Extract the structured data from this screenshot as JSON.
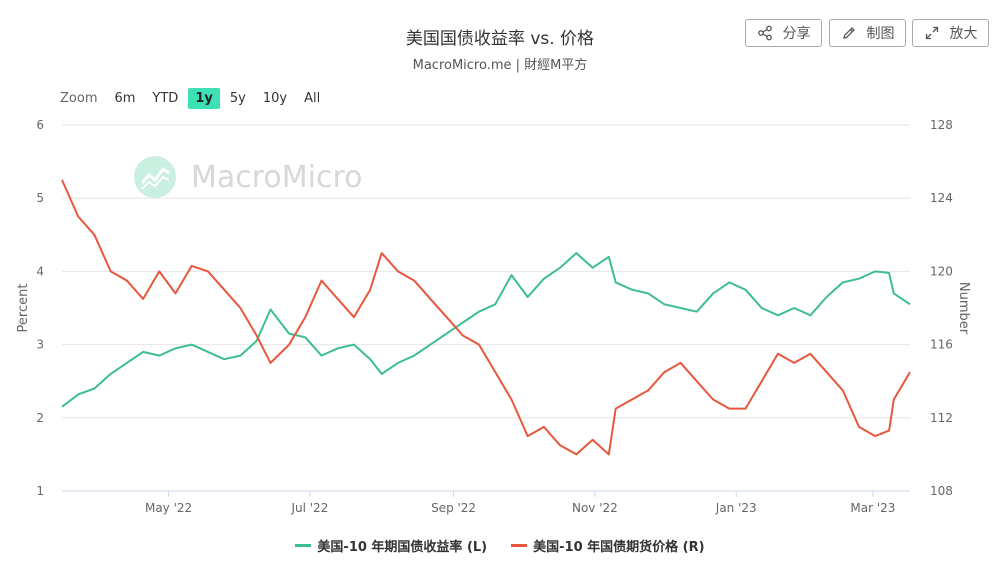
{
  "header": {
    "title": "美国国债收益率 vs. 价格",
    "subtitle": "MacroMicro.me | 財經M平方"
  },
  "toolbar": {
    "share_label": "分享",
    "draw_label": "制图",
    "expand_label": "放大"
  },
  "range_selector": {
    "zoom_label": "Zoom",
    "buttons": [
      "6m",
      "YTD",
      "1y",
      "5y",
      "10y",
      "All"
    ],
    "active": "1y"
  },
  "watermark": {
    "text": "MacroMicro"
  },
  "colors": {
    "yield": "#3ebd93",
    "price": "#e8573d",
    "active_range": "#3ee0b5"
  },
  "chart_data": {
    "type": "line",
    "x_ticks": [
      "May '22",
      "Jul '22",
      "Sep '22",
      "Nov '22",
      "Jan '23",
      "Mar '23"
    ],
    "x_tick_dates": [
      "2022-05-01",
      "2022-07-01",
      "2022-09-01",
      "2022-11-01",
      "2023-01-01",
      "2023-03-01"
    ],
    "x_range": [
      "2022-03-16",
      "2023-03-17"
    ],
    "y_left": {
      "label": "Percent",
      "min": 1,
      "max": 6,
      "ticks": [
        "1",
        "2",
        "3",
        "4",
        "5",
        "6"
      ]
    },
    "y_right": {
      "label": "Number",
      "min": 108,
      "max": 128,
      "ticks": [
        "108",
        "112",
        "116",
        "120",
        "124",
        "128"
      ]
    },
    "grid": true,
    "legend_position": "bottom",
    "series": [
      {
        "name": "美国-10 年期国债收益率 (L)",
        "axis": "left",
        "points": [
          [
            "2022-03-16",
            2.15
          ],
          [
            "2022-03-23",
            2.32
          ],
          [
            "2022-03-30",
            2.4
          ],
          [
            "2022-04-06",
            2.6
          ],
          [
            "2022-04-13",
            2.75
          ],
          [
            "2022-04-20",
            2.9
          ],
          [
            "2022-04-27",
            2.85
          ],
          [
            "2022-05-04",
            2.95
          ],
          [
            "2022-05-11",
            3.0
          ],
          [
            "2022-05-18",
            2.9
          ],
          [
            "2022-05-25",
            2.8
          ],
          [
            "2022-06-01",
            2.85
          ],
          [
            "2022-06-08",
            3.05
          ],
          [
            "2022-06-14",
            3.48
          ],
          [
            "2022-06-22",
            3.15
          ],
          [
            "2022-06-29",
            3.1
          ],
          [
            "2022-07-06",
            2.85
          ],
          [
            "2022-07-13",
            2.95
          ],
          [
            "2022-07-20",
            3.0
          ],
          [
            "2022-07-27",
            2.8
          ],
          [
            "2022-08-01",
            2.6
          ],
          [
            "2022-08-08",
            2.75
          ],
          [
            "2022-08-15",
            2.85
          ],
          [
            "2022-08-22",
            3.0
          ],
          [
            "2022-08-29",
            3.15
          ],
          [
            "2022-09-05",
            3.3
          ],
          [
            "2022-09-12",
            3.45
          ],
          [
            "2022-09-19",
            3.55
          ],
          [
            "2022-09-26",
            3.95
          ],
          [
            "2022-10-03",
            3.65
          ],
          [
            "2022-10-10",
            3.9
          ],
          [
            "2022-10-17",
            4.05
          ],
          [
            "2022-10-24",
            4.25
          ],
          [
            "2022-10-31",
            4.05
          ],
          [
            "2022-11-07",
            4.2
          ],
          [
            "2022-11-10",
            3.85
          ],
          [
            "2022-11-17",
            3.75
          ],
          [
            "2022-11-24",
            3.7
          ],
          [
            "2022-12-01",
            3.55
          ],
          [
            "2022-12-08",
            3.5
          ],
          [
            "2022-12-15",
            3.45
          ],
          [
            "2022-12-22",
            3.7
          ],
          [
            "2022-12-29",
            3.85
          ],
          [
            "2023-01-05",
            3.75
          ],
          [
            "2023-01-12",
            3.5
          ],
          [
            "2023-01-19",
            3.4
          ],
          [
            "2023-01-26",
            3.5
          ],
          [
            "2023-02-02",
            3.4
          ],
          [
            "2023-02-09",
            3.65
          ],
          [
            "2023-02-16",
            3.85
          ],
          [
            "2023-02-23",
            3.9
          ],
          [
            "2023-03-02",
            4.0
          ],
          [
            "2023-03-08",
            3.98
          ],
          [
            "2023-03-10",
            3.7
          ],
          [
            "2023-03-17",
            3.55
          ]
        ]
      },
      {
        "name": "美国-10 年国债期货价格 (R)",
        "axis": "right",
        "points": [
          [
            "2022-03-16",
            125.0
          ],
          [
            "2022-03-23",
            123.0
          ],
          [
            "2022-03-30",
            122.0
          ],
          [
            "2022-04-06",
            120.0
          ],
          [
            "2022-04-13",
            119.5
          ],
          [
            "2022-04-20",
            118.5
          ],
          [
            "2022-04-27",
            120.0
          ],
          [
            "2022-05-04",
            118.8
          ],
          [
            "2022-05-11",
            120.3
          ],
          [
            "2022-05-18",
            120.0
          ],
          [
            "2022-05-25",
            119.0
          ],
          [
            "2022-06-01",
            118.0
          ],
          [
            "2022-06-08",
            116.5
          ],
          [
            "2022-06-14",
            115.0
          ],
          [
            "2022-06-22",
            116.0
          ],
          [
            "2022-06-29",
            117.5
          ],
          [
            "2022-07-06",
            119.5
          ],
          [
            "2022-07-13",
            118.5
          ],
          [
            "2022-07-20",
            117.5
          ],
          [
            "2022-07-27",
            119.0
          ],
          [
            "2022-08-01",
            121.0
          ],
          [
            "2022-08-08",
            120.0
          ],
          [
            "2022-08-15",
            119.5
          ],
          [
            "2022-08-22",
            118.5
          ],
          [
            "2022-08-29",
            117.5
          ],
          [
            "2022-09-05",
            116.5
          ],
          [
            "2022-09-12",
            116.0
          ],
          [
            "2022-09-19",
            114.5
          ],
          [
            "2022-09-26",
            113.0
          ],
          [
            "2022-10-03",
            111.0
          ],
          [
            "2022-10-10",
            111.5
          ],
          [
            "2022-10-17",
            110.5
          ],
          [
            "2022-10-24",
            110.0
          ],
          [
            "2022-10-31",
            110.8
          ],
          [
            "2022-11-07",
            110.0
          ],
          [
            "2022-11-10",
            112.5
          ],
          [
            "2022-11-17",
            113.0
          ],
          [
            "2022-11-24",
            113.5
          ],
          [
            "2022-12-01",
            114.5
          ],
          [
            "2022-12-08",
            115.0
          ],
          [
            "2022-12-15",
            114.0
          ],
          [
            "2022-12-22",
            113.0
          ],
          [
            "2022-12-29",
            112.5
          ],
          [
            "2023-01-05",
            112.5
          ],
          [
            "2023-01-12",
            114.0
          ],
          [
            "2023-01-19",
            115.5
          ],
          [
            "2023-01-26",
            115.0
          ],
          [
            "2023-02-02",
            115.5
          ],
          [
            "2023-02-09",
            114.5
          ],
          [
            "2023-02-16",
            113.5
          ],
          [
            "2023-02-23",
            111.5
          ],
          [
            "2023-03-02",
            111.0
          ],
          [
            "2023-03-08",
            111.3
          ],
          [
            "2023-03-10",
            113.0
          ],
          [
            "2023-03-17",
            114.5
          ]
        ]
      }
    ]
  }
}
